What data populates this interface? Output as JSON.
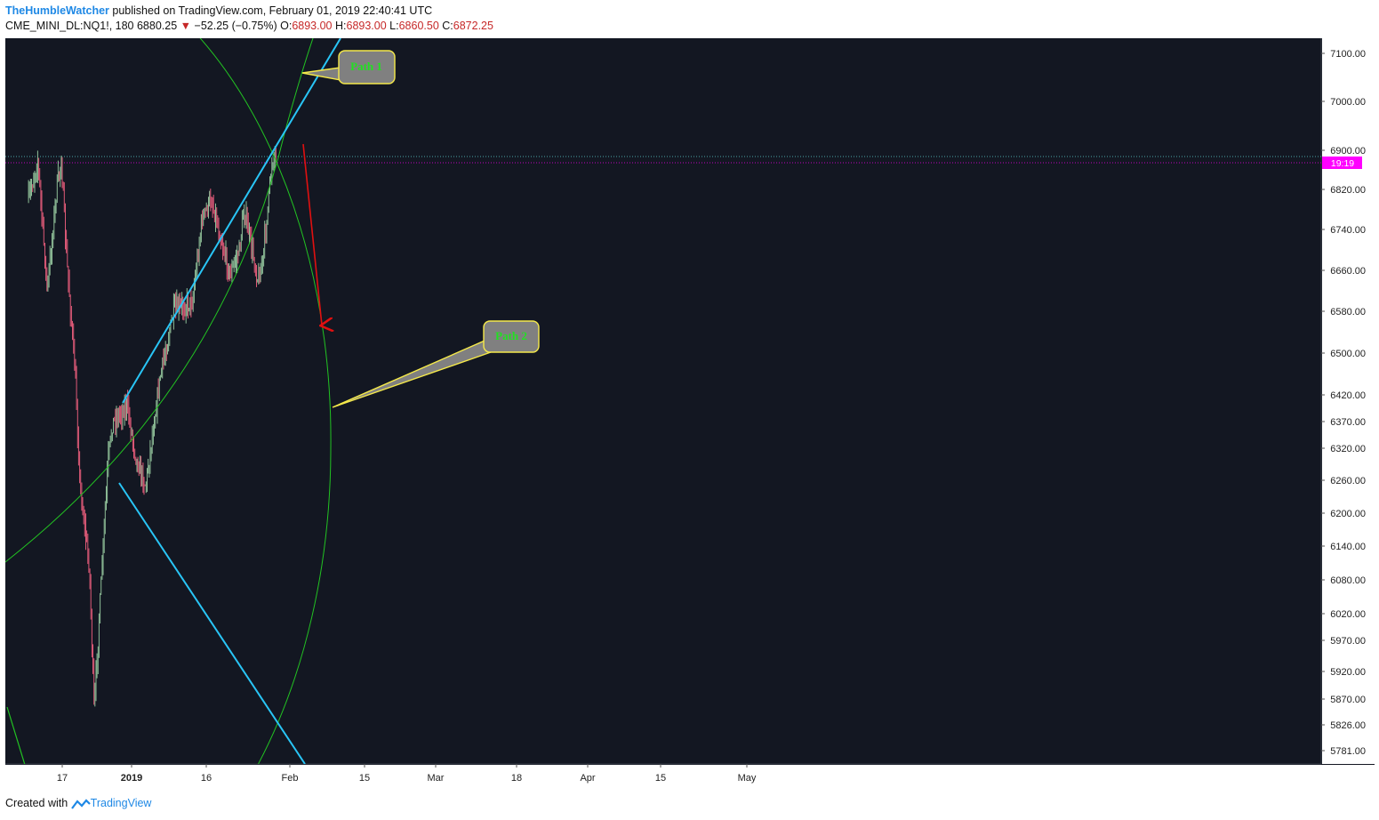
{
  "header": {
    "author": "TheHumbleWatcher",
    "published_text": " published on TradingView.com, February 01, 2019 22:40:41 UTC",
    "symbol": "CME_MINI_DL:NQ1!, 180",
    "last_price": "6880.25",
    "change": "−52.25 (−0.75%)",
    "open_label": "O:",
    "open": "6893.00",
    "high_label": "H:",
    "high": "6893.00",
    "low_label": "L:",
    "low": "6860.50",
    "close_label": "C:",
    "close": "6872.25"
  },
  "footer": {
    "created_with": "Created with",
    "brand": "TradingView"
  },
  "colors": {
    "background": "#131722",
    "up": "#8fbf98",
    "down": "#e05a78",
    "trendline": "#29c5f6",
    "arc": "#22c322",
    "callout_fill": "#808080",
    "callout_border": "#f5e94a",
    "callout_text": "#22e022",
    "arrow": "#e01010",
    "price_tag": "#ff00ff"
  },
  "chart_data": {
    "type": "candlestick",
    "timeframe": "180",
    "y_axis_ticks": [
      "7100.00",
      "7000.00",
      "6900.00",
      "6820.00",
      "6740.00",
      "6660.00",
      "6580.00",
      "6500.00",
      "6420.00",
      "6370.00",
      "6320.00",
      "6260.00",
      "6200.00",
      "6140.00",
      "6080.00",
      "6020.00",
      "5970.00",
      "5920.00",
      "5870.00",
      "5826.00",
      "5781.00"
    ],
    "x_axis_ticks": [
      "17",
      "2019",
      "16",
      "Feb",
      "15",
      "Mar",
      "18",
      "Apr",
      "15",
      "May"
    ],
    "current_price_tag": "19:19",
    "annotations": [
      {
        "type": "callout",
        "text": "Path 1"
      },
      {
        "type": "callout",
        "text": "Path 2"
      },
      {
        "type": "arrow",
        "direction": "down"
      }
    ],
    "series_path": [
      [
        "2018-12-10",
        6800
      ],
      [
        "2018-12-12",
        6880
      ],
      [
        "2018-12-14",
        6620
      ],
      [
        "2018-12-16",
        6820
      ],
      [
        "2018-12-17",
        6880
      ],
      [
        "2018-12-18",
        6700
      ],
      [
        "2018-12-19",
        6580
      ],
      [
        "2018-12-20",
        6450
      ],
      [
        "2018-12-21",
        6250
      ],
      [
        "2018-12-23",
        6100
      ],
      [
        "2018-12-24",
        5850
      ],
      [
        "2018-12-26",
        6150
      ],
      [
        "2018-12-27",
        6300
      ],
      [
        "2018-12-28",
        6370
      ],
      [
        "2018-12-31",
        6400
      ],
      [
        "2019-01-02",
        6300
      ],
      [
        "2019-01-04",
        6250
      ],
      [
        "2019-01-07",
        6450
      ],
      [
        "2019-01-10",
        6580
      ],
      [
        "2019-01-14",
        6600
      ],
      [
        "2019-01-16",
        6760
      ],
      [
        "2019-01-18",
        6800
      ],
      [
        "2019-01-22",
        6650
      ],
      [
        "2019-01-24",
        6700
      ],
      [
        "2019-01-25",
        6780
      ],
      [
        "2019-01-28",
        6640
      ],
      [
        "2019-01-29",
        6680
      ],
      [
        "2019-01-31",
        6880
      ],
      [
        "2019-02-01",
        6900
      ]
    ]
  }
}
